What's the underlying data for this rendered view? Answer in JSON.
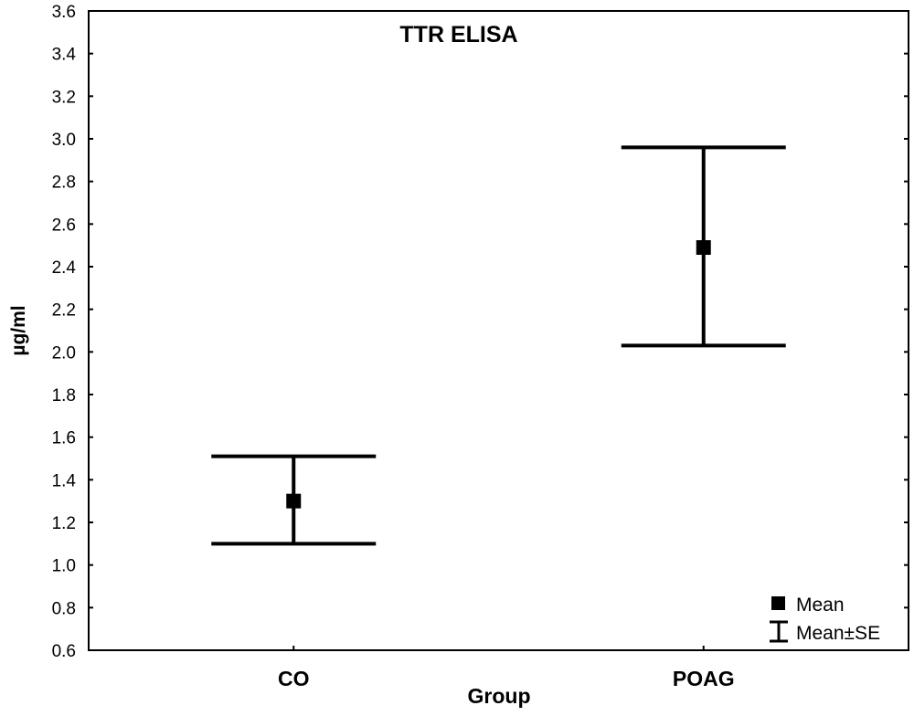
{
  "chart_data": {
    "type": "scatter",
    "title": "TTR ELISA",
    "xlabel": "Group",
    "ylabel": "µg/ml",
    "categories": [
      "CO",
      "POAG"
    ],
    "series": [
      {
        "name": "Mean",
        "values": [
          1.3,
          2.49
        ]
      },
      {
        "name": "Mean±SE",
        "lower": [
          1.1,
          2.03
        ],
        "upper": [
          1.51,
          2.96
        ]
      }
    ],
    "ylim": [
      0.6,
      3.6
    ],
    "yticks": [
      "0.6",
      "0.8",
      "1.0",
      "1.2",
      "1.4",
      "1.6",
      "1.8",
      "2.0",
      "2.2",
      "2.4",
      "2.6",
      "2.8",
      "3.0",
      "3.2",
      "3.4",
      "3.6"
    ],
    "grid": false,
    "legend": {
      "position": "bottom-right",
      "entries": [
        "Mean",
        "Mean±SE"
      ]
    },
    "colors": {
      "marker": "#000000",
      "axis": "#000000"
    }
  }
}
